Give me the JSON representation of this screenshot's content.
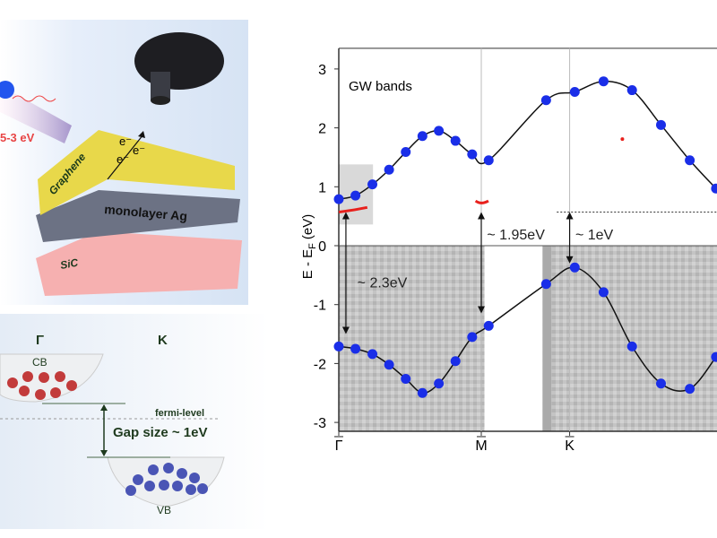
{
  "schematic": {
    "photon_energy": "5-3 eV",
    "graphene_label": "Graphene",
    "ag_label": "monolayer Ag",
    "sic_label": "SiC",
    "electron_label": "e⁻",
    "colors": {
      "graphene": "#e8d84a",
      "ag": "#6c7284",
      "sic": "#f4a8a8",
      "detector": "#1e1e22"
    }
  },
  "band_schematic": {
    "gamma_label": "Γ",
    "k_label": "K",
    "cb_label": "CB",
    "vb_label": "VB",
    "fermi_label": "fermi-level",
    "gap_label": "Gap size ~ 1eV",
    "colors": {
      "cb": "#c23b3b",
      "vb": "#4a55b5"
    }
  },
  "chart_data": {
    "type": "scatter",
    "title": "GW bands",
    "ylabel": "E - E",
    "ylabel_sub": "F",
    "ylabel_unit": "(eV)",
    "ylim": [
      -3.15,
      3.35
    ],
    "yticks": [
      3,
      2,
      1,
      0,
      -1,
      -2,
      -3
    ],
    "xticks": [
      {
        "label": "Γ",
        "k": 0
      },
      {
        "label": "M",
        "k": 1.0
      },
      {
        "label": "K",
        "k": 1.62
      }
    ],
    "series": [
      {
        "k": [
          0,
          0.117,
          0.236,
          0.353,
          0.47,
          0.587,
          0.702,
          0.819,
          0.936,
          1.052,
          1.455,
          1.656,
          1.858,
          2.058,
          2.261,
          2.463,
          2.647
        ],
        "E": [
          0.79,
          0.85,
          1.04,
          1.29,
          1.59,
          1.86,
          1.95,
          1.78,
          1.55,
          1.45,
          2.47,
          2.61,
          2.79,
          2.64,
          2.05,
          1.45,
          0.97
        ],
        "color": "#1a2ee8"
      },
      {
        "k": [
          0,
          0.117,
          0.236,
          0.353,
          0.47,
          0.587,
          0.702,
          0.819,
          0.936,
          1.052,
          1.455,
          1.656,
          1.858,
          2.058,
          2.261,
          2.463,
          2.647
        ],
        "E": [
          -1.71,
          -1.75,
          -1.84,
          -2.02,
          -2.26,
          -2.5,
          -2.34,
          -1.96,
          -1.55,
          -1.36,
          -0.65,
          -0.37,
          -0.79,
          -1.71,
          -2.34,
          -2.43,
          -1.89
        ],
        "color": "#1a2ee8"
      }
    ],
    "gaps": [
      {
        "label": "~ 2.3eV",
        "k": 0.05,
        "from": 0.57,
        "to": -1.5
      },
      {
        "label": "~ 1.95eV",
        "k": 1.0,
        "from": 0.57,
        "to": -1.15
      },
      {
        "label": "~ 1eV",
        "k": 1.62,
        "from": 0.57,
        "to": -0.3
      }
    ],
    "fermi_dotted_E": 0.57,
    "measured_color": "#e8201c",
    "grid": false
  }
}
